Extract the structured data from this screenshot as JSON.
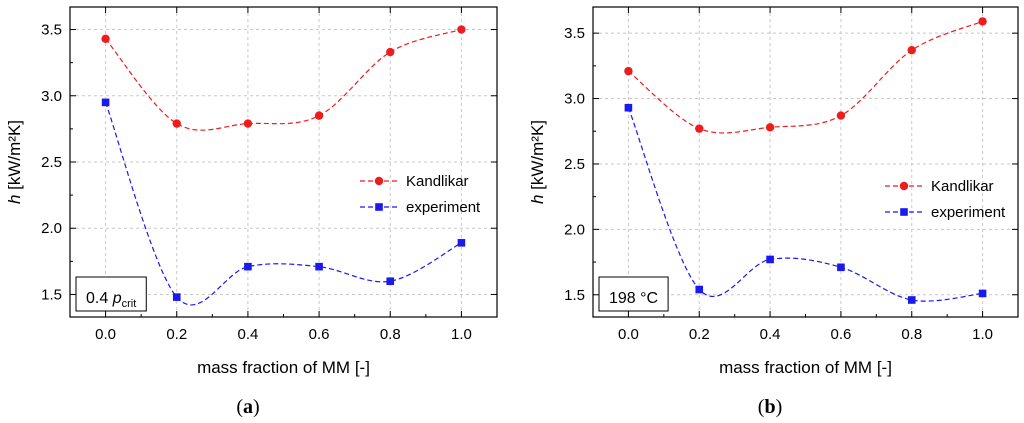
{
  "chart_data": [
    {
      "type": "line",
      "panel_label": "a",
      "xlabel": "mass fraction of MM [-]",
      "ylabel_symbol": "h",
      "ylabel_unit": "[kW/m²K]",
      "xlim": [
        -0.1,
        1.1
      ],
      "ylim": [
        1.33,
        3.67
      ],
      "xticks": [
        0.0,
        0.2,
        0.4,
        0.6,
        0.8,
        1.0
      ],
      "xtick_labels": [
        "0.0",
        "0.2",
        "0.4",
        "0.6",
        "0.8",
        "1.0"
      ],
      "yticks": [
        1.5,
        2.0,
        2.5,
        3.0,
        3.5
      ],
      "ytick_labels": [
        "1.5",
        "2.0",
        "2.5",
        "3.0",
        "3.5"
      ],
      "grid": true,
      "legend_position": "right",
      "annotation": {
        "main": "0.4 ",
        "italic": "p",
        "sub": "crit"
      },
      "series": [
        {
          "name": "Kandlikar",
          "color": "#ee1c1c",
          "marker": "circle",
          "x": [
            0.0,
            0.2,
            0.4,
            0.6,
            0.8,
            1.0
          ],
          "values": [
            3.43,
            2.79,
            2.79,
            2.85,
            3.33,
            3.5
          ]
        },
        {
          "name": "experiment",
          "color": "#1a1aee",
          "marker": "square",
          "x": [
            0.0,
            0.2,
            0.4,
            0.6,
            0.8,
            1.0
          ],
          "values": [
            2.95,
            1.48,
            1.71,
            1.71,
            1.6,
            1.89
          ]
        }
      ]
    },
    {
      "type": "line",
      "panel_label": "b",
      "xlabel": "mass fraction of MM [-]",
      "ylabel_symbol": "h",
      "ylabel_unit": "[kW/m²K]",
      "xlim": [
        -0.1,
        1.1
      ],
      "ylim": [
        1.33,
        3.7
      ],
      "xticks": [
        0.0,
        0.2,
        0.4,
        0.6,
        0.8,
        1.0
      ],
      "xtick_labels": [
        "0.0",
        "0.2",
        "0.4",
        "0.6",
        "0.8",
        "1.0"
      ],
      "yticks": [
        1.5,
        2.0,
        2.5,
        3.0,
        3.5
      ],
      "ytick_labels": [
        "1.5",
        "2.0",
        "2.5",
        "3.0",
        "3.5"
      ],
      "grid": true,
      "legend_position": "right",
      "annotation": {
        "main": "198 °C",
        "italic": "",
        "sub": ""
      },
      "series": [
        {
          "name": "Kandlikar",
          "color": "#ee1c1c",
          "marker": "circle",
          "x": [
            0.0,
            0.2,
            0.4,
            0.6,
            0.8,
            1.0
          ],
          "values": [
            3.21,
            2.77,
            2.78,
            2.87,
            3.37,
            3.59
          ]
        },
        {
          "name": "experiment",
          "color": "#1a1aee",
          "marker": "square",
          "x": [
            0.0,
            0.2,
            0.4,
            0.6,
            0.8,
            1.0
          ],
          "values": [
            2.93,
            1.54,
            1.77,
            1.71,
            1.46,
            1.51
          ]
        }
      ]
    }
  ]
}
